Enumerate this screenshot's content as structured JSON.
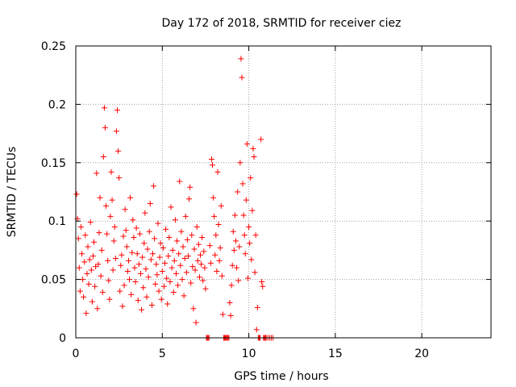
{
  "chart_data": {
    "type": "scatter",
    "title": "Day 172 of 2018, SRMTID for receiver ciez",
    "xlabel": "GPS time / hours",
    "ylabel": "SRMTID / TECUs",
    "xlim": [
      0,
      24
    ],
    "ylim": [
      0,
      0.25
    ],
    "x_ticks": [
      0,
      5,
      10,
      15,
      20
    ],
    "x_tick_labels": [
      "0",
      "5",
      "10",
      "15",
      "20"
    ],
    "y_ticks": [
      0,
      0.05,
      0.1,
      0.15,
      0.2,
      0.25
    ],
    "y_tick_labels": [
      "0",
      "0.05",
      "0.1",
      "0.15",
      "0.2",
      "0.25"
    ],
    "grid": true,
    "legend": "none",
    "marker": "plus",
    "colors": {
      "series": "#ff0000",
      "grid": "#a0a0a0",
      "axis": "#000000"
    },
    "series": [
      {
        "points": [
          [
            0.05,
            0.123
          ],
          [
            0.1,
            0.102
          ],
          [
            0.15,
            0.085
          ],
          [
            0.2,
            0.06
          ],
          [
            0.25,
            0.04
          ],
          [
            0.3,
            0.095
          ],
          [
            0.35,
            0.072
          ],
          [
            0.4,
            0.05
          ],
          [
            0.45,
            0.035
          ],
          [
            0.5,
            0.065
          ],
          [
            0.55,
            0.088
          ],
          [
            0.6,
            0.021
          ],
          [
            0.65,
            0.055
          ],
          [
            0.7,
            0.078
          ],
          [
            0.75,
            0.046
          ],
          [
            0.8,
            0.067
          ],
          [
            0.85,
            0.099
          ],
          [
            0.9,
            0.058
          ],
          [
            0.95,
            0.031
          ],
          [
            1.0,
            0.07
          ],
          [
            1.05,
            0.082
          ],
          [
            1.1,
            0.044
          ],
          [
            1.15,
            0.061
          ],
          [
            1.2,
            0.141
          ],
          [
            1.25,
            0.025
          ],
          [
            1.3,
            0.063
          ],
          [
            1.35,
            0.09
          ],
          [
            1.4,
            0.12
          ],
          [
            1.45,
            0.053
          ],
          [
            1.5,
            0.075
          ],
          [
            1.55,
            0.039
          ],
          [
            1.6,
            0.155
          ],
          [
            1.65,
            0.197
          ],
          [
            1.7,
            0.18
          ],
          [
            1.75,
            0.113
          ],
          [
            1.8,
            0.089
          ],
          [
            1.85,
            0.066
          ],
          [
            1.9,
            0.049
          ],
          [
            1.95,
            0.033
          ],
          [
            2.0,
            0.104
          ],
          [
            2.05,
            0.142
          ],
          [
            2.1,
            0.118
          ],
          [
            2.15,
            0.058
          ],
          [
            2.2,
            0.083
          ],
          [
            2.25,
            0.095
          ],
          [
            2.3,
            0.068
          ],
          [
            2.35,
            0.177
          ],
          [
            2.4,
            0.195
          ],
          [
            2.45,
            0.16
          ],
          [
            2.5,
            0.137
          ],
          [
            2.55,
            0.04
          ],
          [
            2.6,
            0.062
          ],
          [
            2.65,
            0.071
          ],
          [
            2.7,
            0.027
          ],
          [
            2.75,
            0.087
          ],
          [
            2.8,
            0.045
          ],
          [
            2.85,
            0.11
          ],
          [
            2.9,
            0.092
          ],
          [
            2.95,
            0.078
          ],
          [
            3.0,
            0.057
          ],
          [
            3.05,
            0.066
          ],
          [
            3.1,
            0.05
          ],
          [
            3.15,
            0.12
          ],
          [
            3.2,
            0.037
          ],
          [
            3.25,
            0.073
          ],
          [
            3.3,
            0.101
          ],
          [
            3.35,
            0.086
          ],
          [
            3.4,
            0.06
          ],
          [
            3.45,
            0.048
          ],
          [
            3.5,
            0.094
          ],
          [
            3.55,
            0.072
          ],
          [
            3.6,
            0.032
          ],
          [
            3.65,
            0.063
          ],
          [
            3.7,
            0.089
          ],
          [
            3.75,
            0.055
          ],
          [
            3.8,
            0.024
          ],
          [
            3.85,
            0.069
          ],
          [
            3.9,
            0.043
          ],
          [
            3.95,
            0.081
          ],
          [
            4.0,
            0.107
          ],
          [
            4.05,
            0.059
          ],
          [
            4.1,
            0.035
          ],
          [
            4.15,
            0.076
          ],
          [
            4.2,
            0.052
          ],
          [
            4.25,
            0.091
          ],
          [
            4.3,
            0.115
          ],
          [
            4.35,
            0.067
          ],
          [
            4.4,
            0.028
          ],
          [
            4.45,
            0.072
          ],
          [
            4.5,
            0.13
          ],
          [
            4.55,
            0.085
          ],
          [
            4.6,
            0.046
          ],
          [
            4.65,
            0.063
          ],
          [
            4.7,
            0.054
          ],
          [
            4.75,
            0.098
          ],
          [
            4.8,
            0.04
          ],
          [
            4.85,
            0.069
          ],
          [
            4.9,
            0.081
          ],
          [
            4.95,
            0.033
          ],
          [
            5.0,
            0.057
          ],
          [
            5.05,
            0.077
          ],
          [
            5.1,
            0.044
          ],
          [
            5.15,
            0.064
          ],
          [
            5.2,
            0.093
          ],
          [
            5.25,
            0.051
          ],
          [
            5.3,
            0.029
          ],
          [
            5.35,
            0.07
          ],
          [
            5.4,
            0.086
          ],
          [
            5.45,
            0.048
          ],
          [
            5.5,
            0.112
          ],
          [
            5.55,
            0.06
          ],
          [
            5.6,
            0.075
          ],
          [
            5.65,
            0.039
          ],
          [
            5.7,
            0.066
          ],
          [
            5.75,
            0.101
          ],
          [
            5.8,
            0.055
          ],
          [
            5.85,
            0.083
          ],
          [
            5.9,
            0.045
          ],
          [
            5.95,
            0.072
          ],
          [
            6.0,
            0.134
          ],
          [
            6.05,
            0.062
          ],
          [
            6.1,
            0.091
          ],
          [
            6.15,
            0.05
          ],
          [
            6.2,
            0.078
          ],
          [
            6.25,
            0.036
          ],
          [
            6.3,
            0.068
          ],
          [
            6.35,
            0.104
          ],
          [
            6.4,
            0.056
          ],
          [
            6.45,
            0.084
          ],
          [
            6.5,
            0.07
          ],
          [
            6.55,
            0.119
          ],
          [
            6.6,
            0.129
          ],
          [
            6.65,
            0.047
          ],
          [
            6.7,
            0.088
          ],
          [
            6.75,
            0.061
          ],
          [
            6.8,
            0.025
          ],
          [
            6.85,
            0.076
          ],
          [
            6.9,
            0.058
          ],
          [
            6.95,
            0.013
          ],
          [
            7.0,
            0.095
          ],
          [
            7.05,
            0.066
          ],
          [
            7.1,
            0.08
          ],
          [
            7.15,
            0.052
          ],
          [
            7.2,
            0.071
          ],
          [
            7.25,
            0.063
          ],
          [
            7.3,
            0.086
          ],
          [
            7.35,
            0.049
          ],
          [
            7.4,
            0.074
          ],
          [
            7.45,
            0.06
          ],
          [
            7.5,
            0.042
          ],
          [
            7.55,
            0.0
          ],
          [
            7.6,
            0.0
          ],
          [
            7.65,
            0.0
          ],
          [
            7.7,
            0.0
          ],
          [
            7.75,
            0.079
          ],
          [
            7.8,
            0.064
          ],
          [
            7.85,
            0.153
          ],
          [
            7.9,
            0.148
          ],
          [
            7.95,
            0.12
          ],
          [
            8.0,
            0.104
          ],
          [
            8.05,
            0.071
          ],
          [
            8.1,
            0.088
          ],
          [
            8.15,
            0.057
          ],
          [
            8.2,
            0.142
          ],
          [
            8.25,
            0.097
          ],
          [
            8.3,
            0.066
          ],
          [
            8.35,
            0.077
          ],
          [
            8.4,
            0.113
          ],
          [
            8.45,
            0.053
          ],
          [
            8.5,
            0.02
          ],
          [
            8.55,
            0.0
          ],
          [
            8.6,
            0.0
          ],
          [
            8.65,
            0.0
          ],
          [
            8.7,
            0.0
          ],
          [
            8.75,
            0.0
          ],
          [
            8.8,
            0.0
          ],
          [
            8.85,
            0.0
          ],
          [
            8.9,
            0.03
          ],
          [
            8.95,
            0.019
          ],
          [
            9.0,
            0.045
          ],
          [
            9.05,
            0.062
          ],
          [
            9.1,
            0.091
          ],
          [
            9.15,
            0.075
          ],
          [
            9.2,
            0.105
          ],
          [
            9.25,
            0.083
          ],
          [
            9.3,
            0.06
          ],
          [
            9.35,
            0.125
          ],
          [
            9.4,
            0.049
          ],
          [
            9.45,
            0.078
          ],
          [
            9.5,
            0.15
          ],
          [
            9.55,
            0.239
          ],
          [
            9.6,
            0.223
          ],
          [
            9.65,
            0.132
          ],
          [
            9.7,
            0.105
          ],
          [
            9.75,
            0.088
          ],
          [
            9.8,
            0.072
          ],
          [
            9.85,
            0.118
          ],
          [
            9.9,
            0.166
          ],
          [
            9.95,
            0.051
          ],
          [
            10.0,
            0.095
          ],
          [
            10.05,
            0.081
          ],
          [
            10.1,
            0.137
          ],
          [
            10.15,
            0.067
          ],
          [
            10.2,
            0.109
          ],
          [
            10.25,
            0.162
          ],
          [
            10.3,
            0.155
          ],
          [
            10.35,
            0.056
          ],
          [
            10.4,
            0.088
          ],
          [
            10.45,
            0.007
          ],
          [
            10.5,
            0.026
          ],
          [
            10.55,
            0.0
          ],
          [
            10.6,
            0.0
          ],
          [
            10.65,
            0.0
          ],
          [
            10.7,
            0.17
          ],
          [
            10.75,
            0.048
          ],
          [
            10.8,
            0.044
          ],
          [
            10.85,
            0.0
          ],
          [
            10.9,
            0.0
          ],
          [
            10.95,
            0.0
          ],
          [
            11.0,
            0.0
          ],
          [
            11.1,
            0.0
          ],
          [
            11.2,
            0.0
          ],
          [
            11.3,
            0.0
          ],
          [
            11.4,
            0.0
          ]
        ]
      }
    ]
  }
}
